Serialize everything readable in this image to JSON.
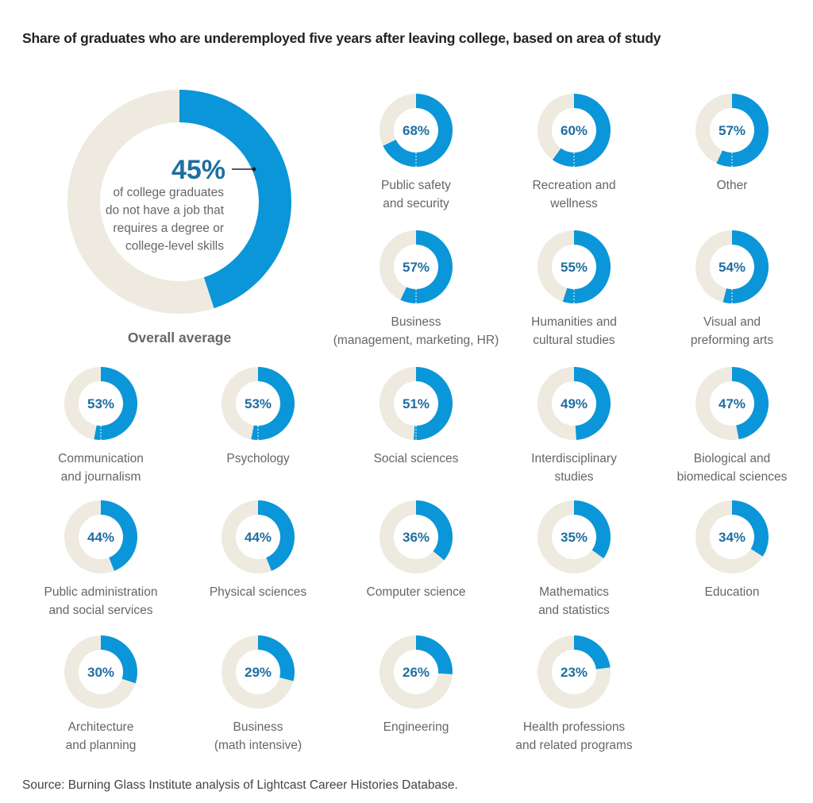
{
  "title": "Share of graduates who are underemployed five years after leaving college, based on area of study",
  "source": "Source: Burning Glass Institute analysis of Lightcast Career Histories Database.",
  "colors": {
    "filled": "#0a96d8",
    "remainder": "#eeeadf",
    "percent_text": "#1f6ea0",
    "label_text": "#666666"
  },
  "chart_data": {
    "type": "pie",
    "title": "Share of graduates who are underemployed five years after leaving college, based on area of study",
    "overall": {
      "label": "Overall average",
      "value": 45,
      "value_label": "45%",
      "annotation": [
        "of college graduates",
        "do not have a job that",
        "requires a degree or",
        "college-level skills"
      ]
    },
    "categories": [
      {
        "label": [
          "Public safety",
          "and security"
        ],
        "value": 68,
        "value_label": "68%"
      },
      {
        "label": [
          "Recreation and",
          "wellness"
        ],
        "value": 60,
        "value_label": "60%"
      },
      {
        "label": [
          "Other"
        ],
        "value": 57,
        "value_label": "57%"
      },
      {
        "label": [
          "Business",
          "(management, marketing, HR)"
        ],
        "value": 57,
        "value_label": "57%"
      },
      {
        "label": [
          "Humanities and",
          "cultural studies"
        ],
        "value": 55,
        "value_label": "55%"
      },
      {
        "label": [
          "Visual and",
          "preforming arts"
        ],
        "value": 54,
        "value_label": "54%"
      },
      {
        "label": [
          "Communication",
          "and journalism"
        ],
        "value": 53,
        "value_label": "53%"
      },
      {
        "label": [
          "Psychology"
        ],
        "value": 53,
        "value_label": "53%"
      },
      {
        "label": [
          "Social sciences"
        ],
        "value": 51,
        "value_label": "51%"
      },
      {
        "label": [
          "Interdisciplinary",
          "studies"
        ],
        "value": 49,
        "value_label": "49%"
      },
      {
        "label": [
          "Biological and",
          "biomedical sciences"
        ],
        "value": 47,
        "value_label": "47%"
      },
      {
        "label": [
          "Public administration",
          "and social services"
        ],
        "value": 44,
        "value_label": "44%"
      },
      {
        "label": [
          "Physical sciences"
        ],
        "value": 44,
        "value_label": "44%"
      },
      {
        "label": [
          "Computer science"
        ],
        "value": 36,
        "value_label": "36%"
      },
      {
        "label": [
          "Mathematics",
          "and statistics"
        ],
        "value": 35,
        "value_label": "35%"
      },
      {
        "label": [
          "Education"
        ],
        "value": 34,
        "value_label": "34%"
      },
      {
        "label": [
          "Architecture",
          "and planning"
        ],
        "value": 30,
        "value_label": "30%"
      },
      {
        "label": [
          "Business",
          "(math intensive)"
        ],
        "value": 29,
        "value_label": "29%"
      },
      {
        "label": [
          "Engineering"
        ],
        "value": 26,
        "value_label": "26%"
      },
      {
        "label": [
          "Health professions",
          "and related programs"
        ],
        "value": 23,
        "value_label": "23%"
      }
    ]
  }
}
